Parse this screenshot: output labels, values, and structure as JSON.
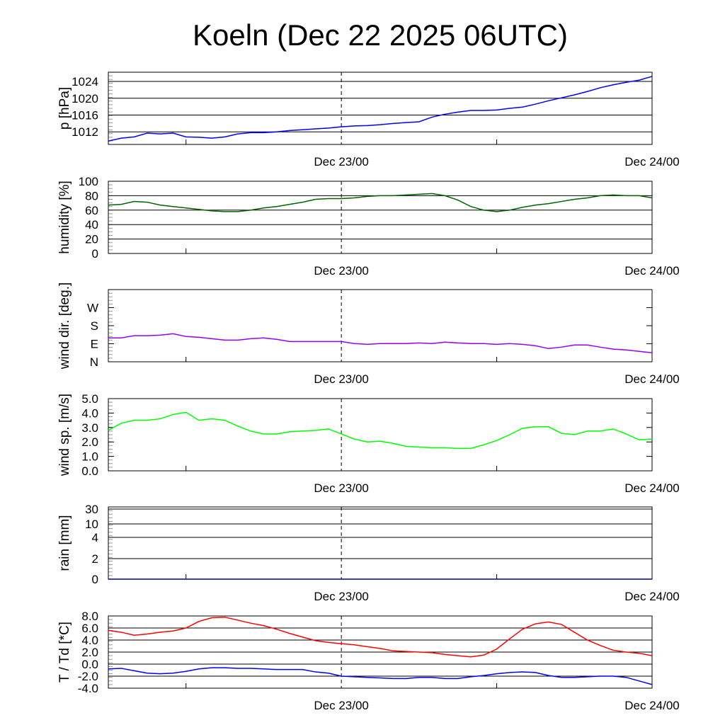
{
  "title": "Koeln (Dec 22 2025 06UTC)",
  "chart_data": [
    {
      "type": "line",
      "id": "pressure",
      "ylabel": "p [hPa]",
      "x_hours_from_start": "0..42 (start Dec 22 06UTC, hourly)",
      "xticks": [
        "Dec 23/00",
        "Dec 24/00"
      ],
      "ylim": [
        1009,
        1026.2
      ],
      "yticks": [
        {
          "v": 1012,
          "label": "1012"
        },
        {
          "v": 1016,
          "label": "1016"
        },
        {
          "v": 1020,
          "label": "1020"
        },
        {
          "v": 1024,
          "label": "1024"
        }
      ],
      "grid": true,
      "series": [
        {
          "name": "p",
          "color": "#0000ff",
          "values": [
            1009.8,
            1010.5,
            1010.8,
            1011.7,
            1011.5,
            1011.7,
            1010.8,
            1010.7,
            1010.5,
            1010.8,
            1011.5,
            1011.8,
            1011.8,
            1012.0,
            1012.3,
            1012.5,
            1012.7,
            1012.9,
            1013.2,
            1013.4,
            1013.5,
            1013.7,
            1014.0,
            1014.2,
            1014.4,
            1015.5,
            1016.2,
            1016.7,
            1017.1,
            1017.1,
            1017.2,
            1017.6,
            1017.9,
            1018.6,
            1019.4,
            1020.1,
            1020.8,
            1021.6,
            1022.5,
            1023.2,
            1023.8,
            1024.3,
            1025.2
          ]
        }
      ]
    },
    {
      "type": "line",
      "id": "humidity",
      "ylabel": "humidity [%]",
      "xticks": [
        "Dec 23/00",
        "Dec 24/00"
      ],
      "ylim": [
        0,
        100
      ],
      "yticks": [
        {
          "v": 0,
          "label": "0"
        },
        {
          "v": 20,
          "label": "20"
        },
        {
          "v": 40,
          "label": "40"
        },
        {
          "v": 60,
          "label": "60"
        },
        {
          "v": 80,
          "label": "80"
        },
        {
          "v": 100,
          "label": "100"
        }
      ],
      "grid": true,
      "series": [
        {
          "name": "humidity",
          "color": "#006400",
          "values": [
            67,
            68,
            72,
            71,
            67,
            65,
            63,
            61,
            59,
            58,
            58,
            60,
            63,
            65,
            68,
            71,
            75,
            76,
            76,
            77,
            79,
            80,
            80,
            81,
            82,
            83,
            80,
            74,
            65,
            60,
            58,
            60,
            64,
            67,
            69,
            72,
            75,
            77,
            80,
            81,
            80,
            80,
            77
          ]
        }
      ]
    },
    {
      "type": "line",
      "id": "wind_dir",
      "ylabel": "wind dir. [deg.]",
      "xticks": [
        "Dec 23/00",
        "Dec 24/00"
      ],
      "ylim": [
        0,
        360
      ],
      "yticks": [
        {
          "v": 0,
          "label": "N"
        },
        {
          "v": 90,
          "label": "E"
        },
        {
          "v": 180,
          "label": "S"
        },
        {
          "v": 270,
          "label": "W"
        }
      ],
      "grid": false,
      "series": [
        {
          "name": "wind direction",
          "color": "#9400ff",
          "values": [
            119,
            119,
            130,
            130,
            133,
            140,
            126,
            122,
            115,
            108,
            108,
            115,
            119,
            112,
            101,
            101,
            101,
            101,
            101,
            91,
            87,
            91,
            91,
            91,
            94,
            91,
            98,
            94,
            91,
            91,
            87,
            91,
            87,
            80,
            66,
            73,
            84,
            84,
            73,
            63,
            59,
            52,
            45
          ]
        }
      ]
    },
    {
      "type": "line",
      "id": "wind_speed",
      "ylabel": "wind sp. [m/s]",
      "xticks": [
        "Dec 23/00",
        "Dec 24/00"
      ],
      "ylim": [
        0,
        5
      ],
      "yticks": [
        {
          "v": 0,
          "label": "0.0"
        },
        {
          "v": 1,
          "label": "1.0"
        },
        {
          "v": 2,
          "label": "2.0"
        },
        {
          "v": 3,
          "label": "3.0"
        },
        {
          "v": 4,
          "label": "4.0"
        },
        {
          "v": 5,
          "label": "5.0"
        }
      ],
      "grid": false,
      "series": [
        {
          "name": "wind speed",
          "color": "#00ff00",
          "values": [
            2.8,
            3.3,
            3.5,
            3.5,
            3.6,
            3.9,
            4.05,
            3.5,
            3.6,
            3.5,
            3.1,
            2.75,
            2.55,
            2.55,
            2.7,
            2.75,
            2.8,
            2.9,
            2.55,
            2.2,
            2.0,
            2.05,
            1.9,
            1.7,
            1.65,
            1.6,
            1.6,
            1.55,
            1.55,
            1.8,
            2.1,
            2.5,
            2.95,
            3.05,
            3.05,
            2.6,
            2.5,
            2.75,
            2.75,
            2.9,
            2.55,
            2.15,
            2.2
          ]
        }
      ]
    },
    {
      "type": "line",
      "id": "rain",
      "ylabel": "rain [mm]",
      "xticks": [
        "Dec 23/00",
        "Dec 24/00"
      ],
      "ylim": [
        0,
        30
      ],
      "yticks": [
        {
          "v": 0,
          "label": "0"
        },
        {
          "v": 2,
          "label": "2"
        },
        {
          "v": 4,
          "label": "4"
        },
        {
          "v": 10,
          "label": "10"
        },
        {
          "v": 30,
          "label": "30"
        }
      ],
      "grid": true,
      "series": [
        {
          "name": "rain",
          "color": "#00008b",
          "values": [
            0,
            0,
            0,
            0,
            0,
            0,
            0,
            0,
            0,
            0,
            0,
            0,
            0,
            0,
            0,
            0,
            0,
            0,
            0,
            0,
            0,
            0,
            0,
            0,
            0,
            0,
            0,
            0,
            0,
            0,
            0,
            0,
            0,
            0,
            0,
            0,
            0,
            0,
            0,
            0,
            0,
            0,
            0
          ]
        }
      ]
    },
    {
      "type": "line",
      "id": "temperature",
      "ylabel": "T / Td [*C]",
      "xticks": [
        "Dec 23/00",
        "Dec 24/00"
      ],
      "ylim": [
        -4,
        8
      ],
      "yticks": [
        {
          "v": -4,
          "label": "-4.0"
        },
        {
          "v": -2,
          "label": "-2.0"
        },
        {
          "v": 0,
          "label": "0.0"
        },
        {
          "v": 2,
          "label": "2.0"
        },
        {
          "v": 4,
          "label": "4.0"
        },
        {
          "v": 6,
          "label": "6.0"
        },
        {
          "v": 8,
          "label": "8.0"
        }
      ],
      "grid": true,
      "series": [
        {
          "name": "T",
          "color": "#ff0000",
          "values": [
            5.6,
            5.3,
            4.8,
            5.0,
            5.3,
            5.5,
            6.0,
            7.1,
            7.7,
            7.8,
            7.3,
            6.8,
            6.4,
            5.8,
            5.1,
            4.5,
            3.9,
            3.6,
            3.4,
            3.2,
            2.9,
            2.6,
            2.2,
            2.1,
            2.0,
            1.9,
            1.6,
            1.4,
            1.2,
            1.5,
            2.5,
            4.2,
            5.8,
            6.7,
            7.0,
            6.6,
            5.3,
            4.0,
            3.1,
            2.3,
            2.0,
            1.8,
            1.4
          ]
        },
        {
          "name": "Td",
          "color": "#0000ff",
          "values": [
            -0.8,
            -0.7,
            -1.1,
            -1.5,
            -1.6,
            -1.5,
            -1.2,
            -0.8,
            -0.6,
            -0.6,
            -0.7,
            -0.7,
            -0.8,
            -0.9,
            -0.9,
            -0.9,
            -1.3,
            -1.5,
            -2.0,
            -2.1,
            -2.2,
            -2.3,
            -2.4,
            -2.4,
            -2.2,
            -2.2,
            -2.4,
            -2.4,
            -2.1,
            -1.9,
            -1.6,
            -1.4,
            -1.3,
            -1.4,
            -1.9,
            -2.2,
            -2.2,
            -2.1,
            -2.0,
            -2.0,
            -2.2,
            -2.8,
            -3.4
          ]
        }
      ]
    }
  ]
}
